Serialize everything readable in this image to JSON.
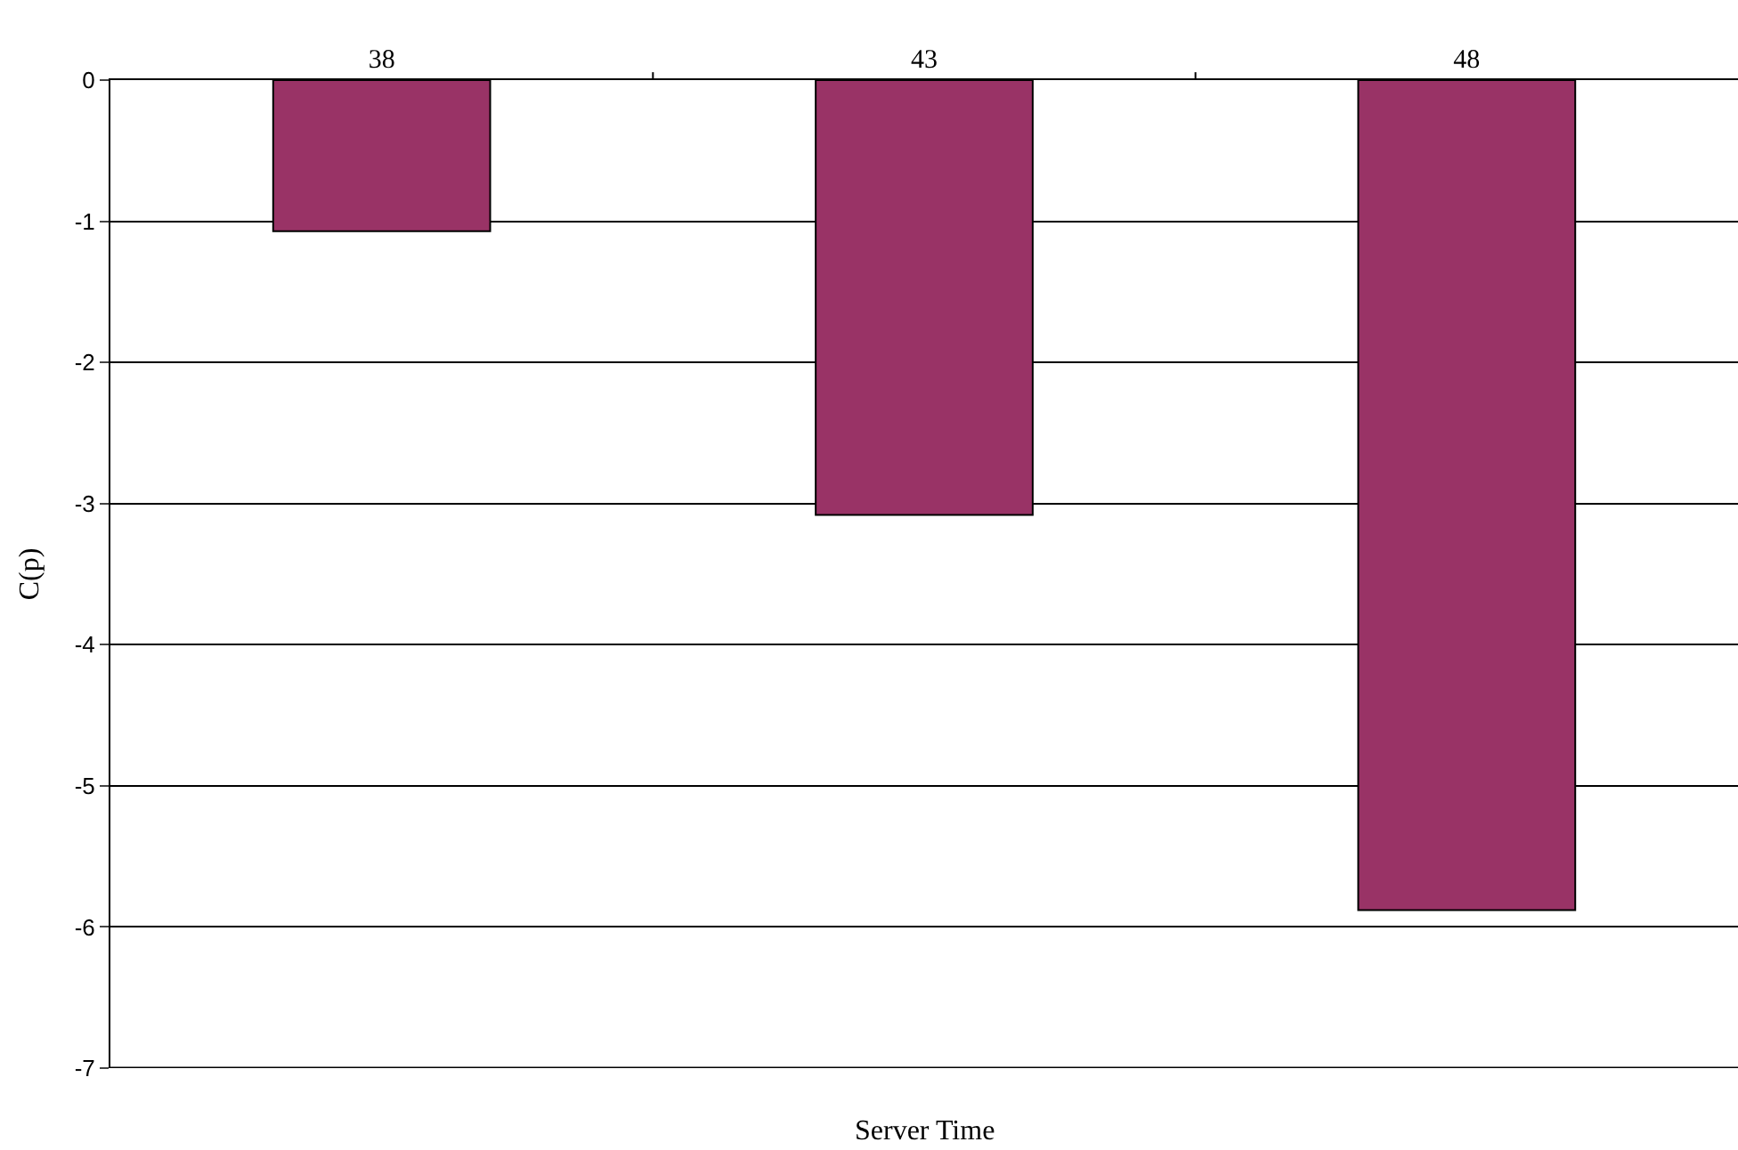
{
  "chart_data": {
    "type": "bar",
    "xlabel": "Server Time",
    "ylabel": "C(p)",
    "categories": [
      "38",
      "43",
      "48"
    ],
    "values": [
      -1.07,
      -3.08,
      -5.88
    ],
    "color": "#993366",
    "ylim": [
      -7,
      0
    ],
    "yticks": [
      -7,
      -6,
      -5,
      -4,
      -3,
      -2,
      -1,
      0
    ],
    "grid": "y",
    "legend": false
  }
}
